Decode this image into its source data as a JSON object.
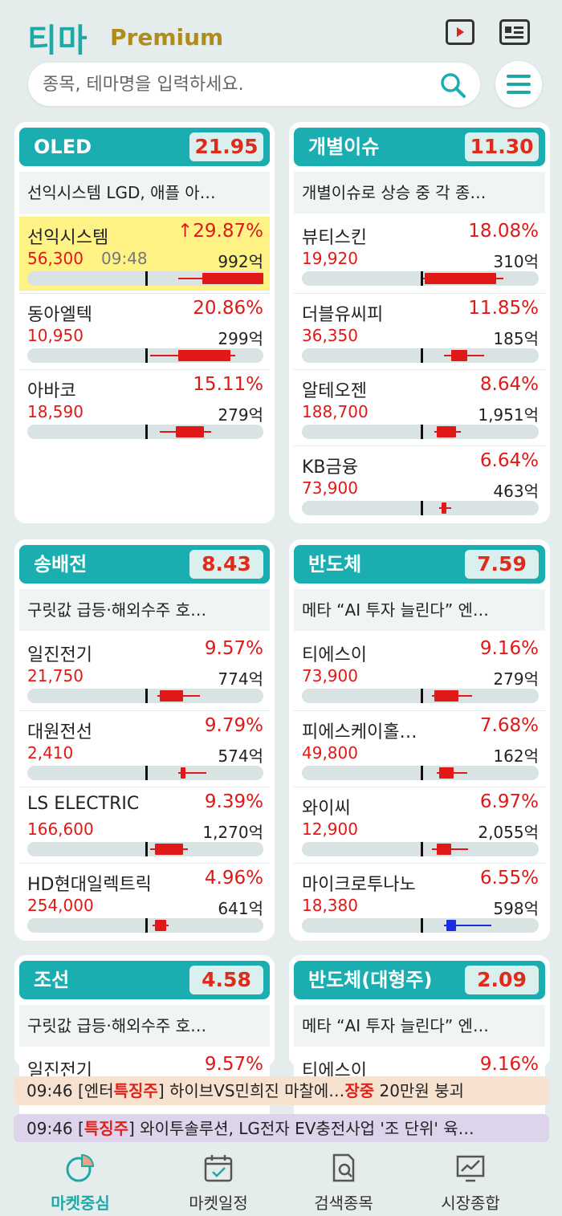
{
  "header": {
    "logo": "티마",
    "logo_sub": "Premium",
    "video_icon": "play-video-icon",
    "news_icon": "newspaper-icon"
  },
  "search": {
    "placeholder": "종목, 테마명을 입력하세요.",
    "icon": "search-icon"
  },
  "colors": {
    "accent": "#1aaeb0",
    "up": "#e01818",
    "down": "#1a2ee0",
    "highlight": "#fff386",
    "sub_brand": "#b08c1a"
  },
  "themes": [
    {
      "name": "OLED",
      "rate": "21.95",
      "news": "선익시스템 LGD, 애플 아…",
      "stocks": [
        {
          "name": "선익시스템",
          "rate": "↑29.87%",
          "price": "56,300",
          "time": "09:48",
          "volume": "992억",
          "highlight": true,
          "color": "up",
          "bar": {
            "mark": 0.5,
            "low": 0.64,
            "high": 1.0,
            "open": 0.74,
            "close": 1.0
          }
        },
        {
          "name": "동아엘텍",
          "rate": "20.86%",
          "price": "10,950",
          "volume": "299억",
          "color": "up",
          "bar": {
            "mark": 0.5,
            "low": 0.52,
            "high": 0.88,
            "open": 0.64,
            "close": 0.86
          }
        },
        {
          "name": "아바코",
          "rate": "15.11%",
          "price": "18,590",
          "volume": "279억",
          "color": "up",
          "bar": {
            "mark": 0.5,
            "low": 0.56,
            "high": 0.78,
            "open": 0.63,
            "close": 0.75
          }
        }
      ]
    },
    {
      "name": "개별이슈",
      "rate": "11.30",
      "news": "개별이슈로 상승 중 각 종…",
      "stocks": [
        {
          "name": "뷰티스킨",
          "rate": "18.08%",
          "price": "19,920",
          "volume": "310억",
          "color": "up",
          "bar": {
            "mark": 0.5,
            "low": 0.5,
            "high": 0.85,
            "open": 0.52,
            "close": 0.82
          }
        },
        {
          "name": "더블유씨피",
          "rate": "11.85%",
          "price": "36,350",
          "volume": "185억",
          "color": "up",
          "bar": {
            "mark": 0.5,
            "low": 0.6,
            "high": 0.77,
            "open": 0.63,
            "close": 0.7
          }
        },
        {
          "name": "알테오젠",
          "rate": "8.64%",
          "price": "188,700",
          "volume": "1,951억",
          "color": "up",
          "bar": {
            "mark": 0.5,
            "low": 0.56,
            "high": 0.67,
            "open": 0.57,
            "close": 0.65
          }
        },
        {
          "name": "KB금융",
          "rate": "6.64%",
          "price": "73,900",
          "volume": "463억",
          "color": "up",
          "bar": {
            "mark": 0.5,
            "low": 0.58,
            "high": 0.63,
            "open": 0.59,
            "close": 0.61
          }
        }
      ]
    },
    {
      "name": "송배전",
      "rate": "8.43",
      "news": "구릿값 급등·해외수주 호…",
      "stocks": [
        {
          "name": "일진전기",
          "rate": "9.57%",
          "price": "21,750",
          "volume": "774억",
          "color": "up",
          "bar": {
            "mark": 0.5,
            "low": 0.55,
            "high": 0.73,
            "open": 0.56,
            "close": 0.66
          }
        },
        {
          "name": "대원전선",
          "rate": "9.79%",
          "price": "2,410",
          "volume": "574억",
          "color": "up",
          "bar": {
            "mark": 0.5,
            "low": 0.64,
            "high": 0.76,
            "open": 0.65,
            "close": 0.67
          }
        },
        {
          "name": "LS ELECTRIC",
          "rate": "9.39%",
          "price": "166,600",
          "volume": "1,270억",
          "color": "up",
          "bar": {
            "mark": 0.5,
            "low": 0.52,
            "high": 0.68,
            "open": 0.54,
            "close": 0.66
          }
        },
        {
          "name": "HD현대일렉트릭",
          "rate": "4.96%",
          "price": "254,000",
          "volume": "641억",
          "color": "up",
          "bar": {
            "mark": 0.5,
            "low": 0.53,
            "high": 0.6,
            "open": 0.54,
            "close": 0.59
          }
        }
      ]
    },
    {
      "name": "반도체",
      "rate": "7.59",
      "news": "메타 “AI 투자 늘린다” 엔…",
      "stocks": [
        {
          "name": "티에스이",
          "rate": "9.16%",
          "price": "73,900",
          "volume": "279억",
          "color": "up",
          "bar": {
            "mark": 0.5,
            "low": 0.55,
            "high": 0.72,
            "open": 0.56,
            "close": 0.66
          }
        },
        {
          "name": "피에스케이홀…",
          "rate": "7.68%",
          "price": "49,800",
          "volume": "162억",
          "color": "up",
          "bar": {
            "mark": 0.5,
            "low": 0.57,
            "high": 0.7,
            "open": 0.58,
            "close": 0.64
          }
        },
        {
          "name": "와이씨",
          "rate": "6.97%",
          "price": "12,900",
          "volume": "2,055억",
          "color": "up",
          "bar": {
            "mark": 0.5,
            "low": 0.55,
            "high": 0.7,
            "open": 0.57,
            "close": 0.63
          }
        },
        {
          "name": "마이크로투나노",
          "rate": "6.55%",
          "price": "18,380",
          "volume": "598억",
          "color": "down",
          "bar": {
            "mark": 0.5,
            "low": 0.6,
            "high": 0.8,
            "open": 0.61,
            "close": 0.65
          }
        }
      ]
    },
    {
      "name": "조선",
      "rate": "4.58",
      "news": "구릿값 급등·해외수주 호…",
      "stocks": [
        {
          "name": "일진전기",
          "rate": "9.57%"
        }
      ]
    },
    {
      "name": "반도체(대형주)",
      "rate": "2.09",
      "news": "메타 “AI 투자 늘린다” 엔…",
      "stocks": [
        {
          "name": "티에스이",
          "rate": "9.16%"
        }
      ]
    }
  ],
  "tickers": [
    {
      "time": "09:46",
      "pre": " [엔터",
      "hot1": "특징주",
      "mid": "] 하이브VS민희진 마찰에…",
      "hot2": "장중",
      "post": " 20만원 붕괴",
      "bg": "#f6e2cf"
    },
    {
      "time": "09:46",
      "pre": " [",
      "hot1": "특징주",
      "mid": "] 와이투솔루션, LG전자 EV충전사업 '조 단위' 육…",
      "hot2": "",
      "post": "",
      "bg": "#ddd4ec"
    }
  ],
  "nav": [
    {
      "label": "마켓중심",
      "icon": "pie-chart-icon",
      "active": true
    },
    {
      "label": "마켓일정",
      "icon": "calendar-check-icon",
      "active": false
    },
    {
      "label": "검색종목",
      "icon": "document-search-icon",
      "active": false
    },
    {
      "label": "시장종합",
      "icon": "trend-chart-icon",
      "active": false
    }
  ]
}
